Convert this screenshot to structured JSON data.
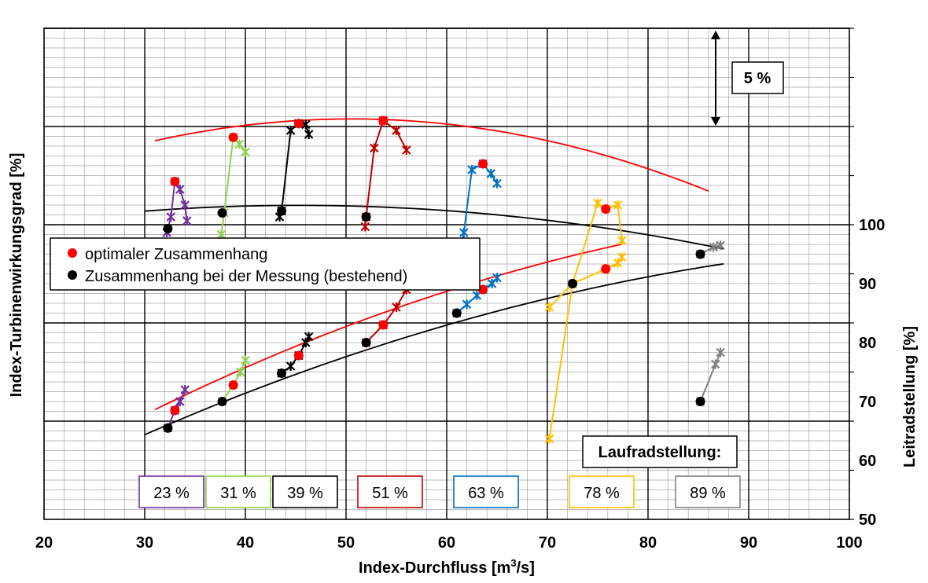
{
  "chart_data": {
    "type": "scatter",
    "xlabel": "Index-Durchfluss [m",
    "xlabel_sup": "3",
    "xlabel_end": "/s]",
    "ylabel_left": "Index-Turbinenwirkungsgrad [%]",
    "ylabel_right": "Leitradstellung [%]",
    "xlim": [
      20,
      100
    ],
    "x_ticks": [
      "20",
      "30",
      "40",
      "50",
      "60",
      "70",
      "80",
      "90",
      "100"
    ],
    "y_right_lim": [
      50,
      100
    ],
    "y_right_ticks": [
      "50",
      "60",
      "70",
      "80",
      "90",
      "100"
    ],
    "grid": true,
    "scale_annotation": "5 %",
    "legend": {
      "placement": "middle-left",
      "entries": [
        {
          "label": "optimaler Zusammenhang",
          "color": "#ff0000"
        },
        {
          "label": "Zusammenhang bei der Messung (bestehend)",
          "color": "#000000"
        }
      ]
    },
    "runner_title": "Laufradstellung:",
    "runner_settings": [
      {
        "label": "23 %",
        "color": "#7030a0"
      },
      {
        "label": "31 %",
        "color": "#92d050"
      },
      {
        "label": "39 %",
        "color": "#000000"
      },
      {
        "label": "51 %",
        "color": "#c00000"
      },
      {
        "label": "63 %",
        "color": "#0070c0"
      },
      {
        "label": "78 %",
        "color": "#ffc000"
      },
      {
        "label": "89 %",
        "color": "#808080"
      }
    ],
    "efficiency_optimal_points": {
      "x": [
        33.0,
        38.8,
        45.3,
        53.7,
        63.6,
        75.8
      ],
      "efficiency_rel": [
        -2.8,
        -0.55,
        0.15,
        0.3,
        -1.9,
        -4.2
      ]
    },
    "efficiency_measured_points": {
      "x": [
        32.3,
        37.7,
        43.6,
        52.0,
        61.0,
        72.5,
        85.2
      ],
      "efficiency_rel": [
        -5.2,
        -4.4,
        -4.3,
        -4.6,
        -7.5,
        -8.0,
        -14.0
      ]
    },
    "leitrad_optimal_points": {
      "x": [
        33.0,
        38.8,
        45.3,
        53.7,
        63.6,
        75.8
      ],
      "y": [
        68.5,
        72.8,
        77.8,
        83.0,
        89.0,
        92.5
      ]
    },
    "leitrad_measured_points": {
      "x": [
        32.3,
        37.7,
        43.6,
        52.0,
        61.0,
        72.5,
        85.2
      ],
      "y": [
        65.5,
        70.0,
        74.8,
        80.0,
        85.0,
        90.0,
        95.0
      ]
    }
  }
}
